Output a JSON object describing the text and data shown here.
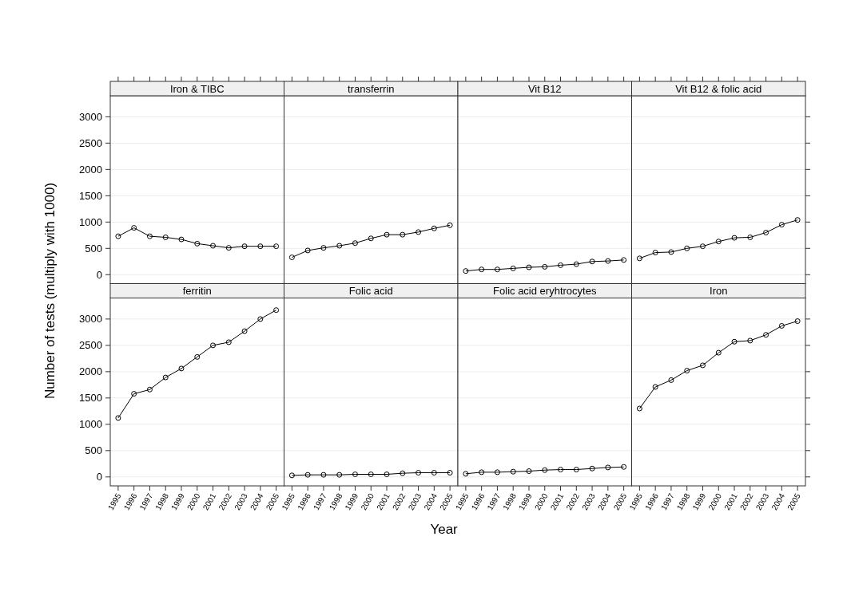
{
  "chart_data": [
    {
      "type": "line",
      "title": "Iron & TIBC",
      "ylabel": "Number of tests (multiply with 1000)",
      "categories": [
        "1995",
        "1996",
        "1997",
        "1998",
        "1999",
        "2000",
        "2001",
        "2002",
        "2003",
        "2004",
        "2005"
      ],
      "values": [
        730,
        890,
        730,
        710,
        670,
        590,
        550,
        510,
        540,
        540,
        540
      ],
      "color": "#000000",
      "ylim": [
        -170,
        3400
      ],
      "yticks": [
        0,
        500,
        1000,
        1500,
        2000,
        2500,
        3000
      ],
      "grid": "y",
      "marker": "circle",
      "tick_labels": "y"
    },
    {
      "type": "line",
      "title": "transferrin",
      "categories": [
        "1995",
        "1996",
        "1997",
        "1998",
        "1999",
        "2000",
        "2001",
        "2002",
        "2003",
        "2004",
        "2005"
      ],
      "values": [
        330,
        460,
        510,
        550,
        600,
        690,
        760,
        760,
        810,
        880,
        940
      ],
      "color": "#000000",
      "ylim": [
        -170,
        3400
      ],
      "yticks": [
        0,
        500,
        1000,
        1500,
        2000,
        2500,
        3000
      ],
      "grid": "y",
      "marker": "circle",
      "tick_labels": false
    },
    {
      "type": "line",
      "title": "Vit B12",
      "categories": [
        "1995",
        "1996",
        "1997",
        "1998",
        "1999",
        "2000",
        "2001",
        "2002",
        "2003",
        "2004",
        "2005"
      ],
      "values": [
        70,
        100,
        100,
        120,
        140,
        150,
        180,
        200,
        250,
        260,
        280
      ],
      "color": "#000000",
      "ylim": [
        -170,
        3400
      ],
      "yticks": [
        0,
        500,
        1000,
        1500,
        2000,
        2500,
        3000
      ],
      "grid": "y",
      "marker": "circle",
      "tick_labels": false
    },
    {
      "type": "line",
      "title": "Vit B12 & folic acid",
      "categories": [
        "1995",
        "1996",
        "1997",
        "1998",
        "1999",
        "2000",
        "2001",
        "2002",
        "2003",
        "2004",
        "2005"
      ],
      "values": [
        310,
        420,
        430,
        500,
        540,
        630,
        700,
        710,
        800,
        950,
        1040
      ],
      "color": "#000000",
      "ylim": [
        -170,
        3400
      ],
      "yticks": [
        0,
        500,
        1000,
        1500,
        2000,
        2500,
        3000
      ],
      "grid": "y",
      "marker": "circle",
      "tick_labels": false
    },
    {
      "type": "line",
      "title": "ferritin",
      "categories": [
        "1995",
        "1996",
        "1997",
        "1998",
        "1999",
        "2000",
        "2001",
        "2002",
        "2003",
        "2004",
        "2005"
      ],
      "values": [
        1120,
        1580,
        1660,
        1890,
        2060,
        2280,
        2500,
        2560,
        2770,
        3000,
        3170
      ],
      "color": "#000000",
      "ylim": [
        -170,
        3400
      ],
      "yticks": [
        0,
        500,
        1000,
        1500,
        2000,
        2500,
        3000
      ],
      "grid": "y",
      "marker": "circle"
    },
    {
      "type": "line",
      "title": "Folic acid",
      "xlabel": "Year",
      "categories": [
        "1995",
        "1996",
        "1997",
        "1998",
        "1999",
        "2000",
        "2001",
        "2002",
        "2003",
        "2004",
        "2005"
      ],
      "values": [
        30,
        40,
        40,
        40,
        50,
        50,
        50,
        70,
        80,
        80,
        80
      ],
      "color": "#000000",
      "ylim": [
        -170,
        3400
      ],
      "yticks": [
        0,
        500,
        1000,
        1500,
        2000,
        2500,
        3000
      ],
      "grid": "y",
      "marker": "circle",
      "tick_labels": "x"
    },
    {
      "type": "line",
      "title": "Folic acid eryhtrocytes",
      "categories": [
        "1995",
        "1996",
        "1997",
        "1998",
        "1999",
        "2000",
        "2001",
        "2002",
        "2003",
        "2004",
        "2005"
      ],
      "values": [
        60,
        90,
        90,
        100,
        110,
        130,
        140,
        140,
        160,
        180,
        190
      ],
      "color": "#000000",
      "ylim": [
        -170,
        3400
      ],
      "yticks": [
        0,
        500,
        1000,
        1500,
        2000,
        2500,
        3000
      ],
      "grid": "y",
      "marker": "circle",
      "tick_labels": "x"
    },
    {
      "type": "line",
      "title": "Iron",
      "categories": [
        "1995",
        "1996",
        "1997",
        "1998",
        "1999",
        "2000",
        "2001",
        "2002",
        "2003",
        "2004",
        "2005"
      ],
      "values": [
        1300,
        1710,
        1840,
        2020,
        2120,
        2360,
        2570,
        2590,
        2700,
        2870,
        2960
      ],
      "color": "#000000",
      "ylim": [
        -170,
        3400
      ],
      "yticks": [
        0,
        500,
        1000,
        1500,
        2000,
        2500,
        3000
      ],
      "grid": "y",
      "marker": "circle",
      "tick_labels": "x"
    }
  ]
}
